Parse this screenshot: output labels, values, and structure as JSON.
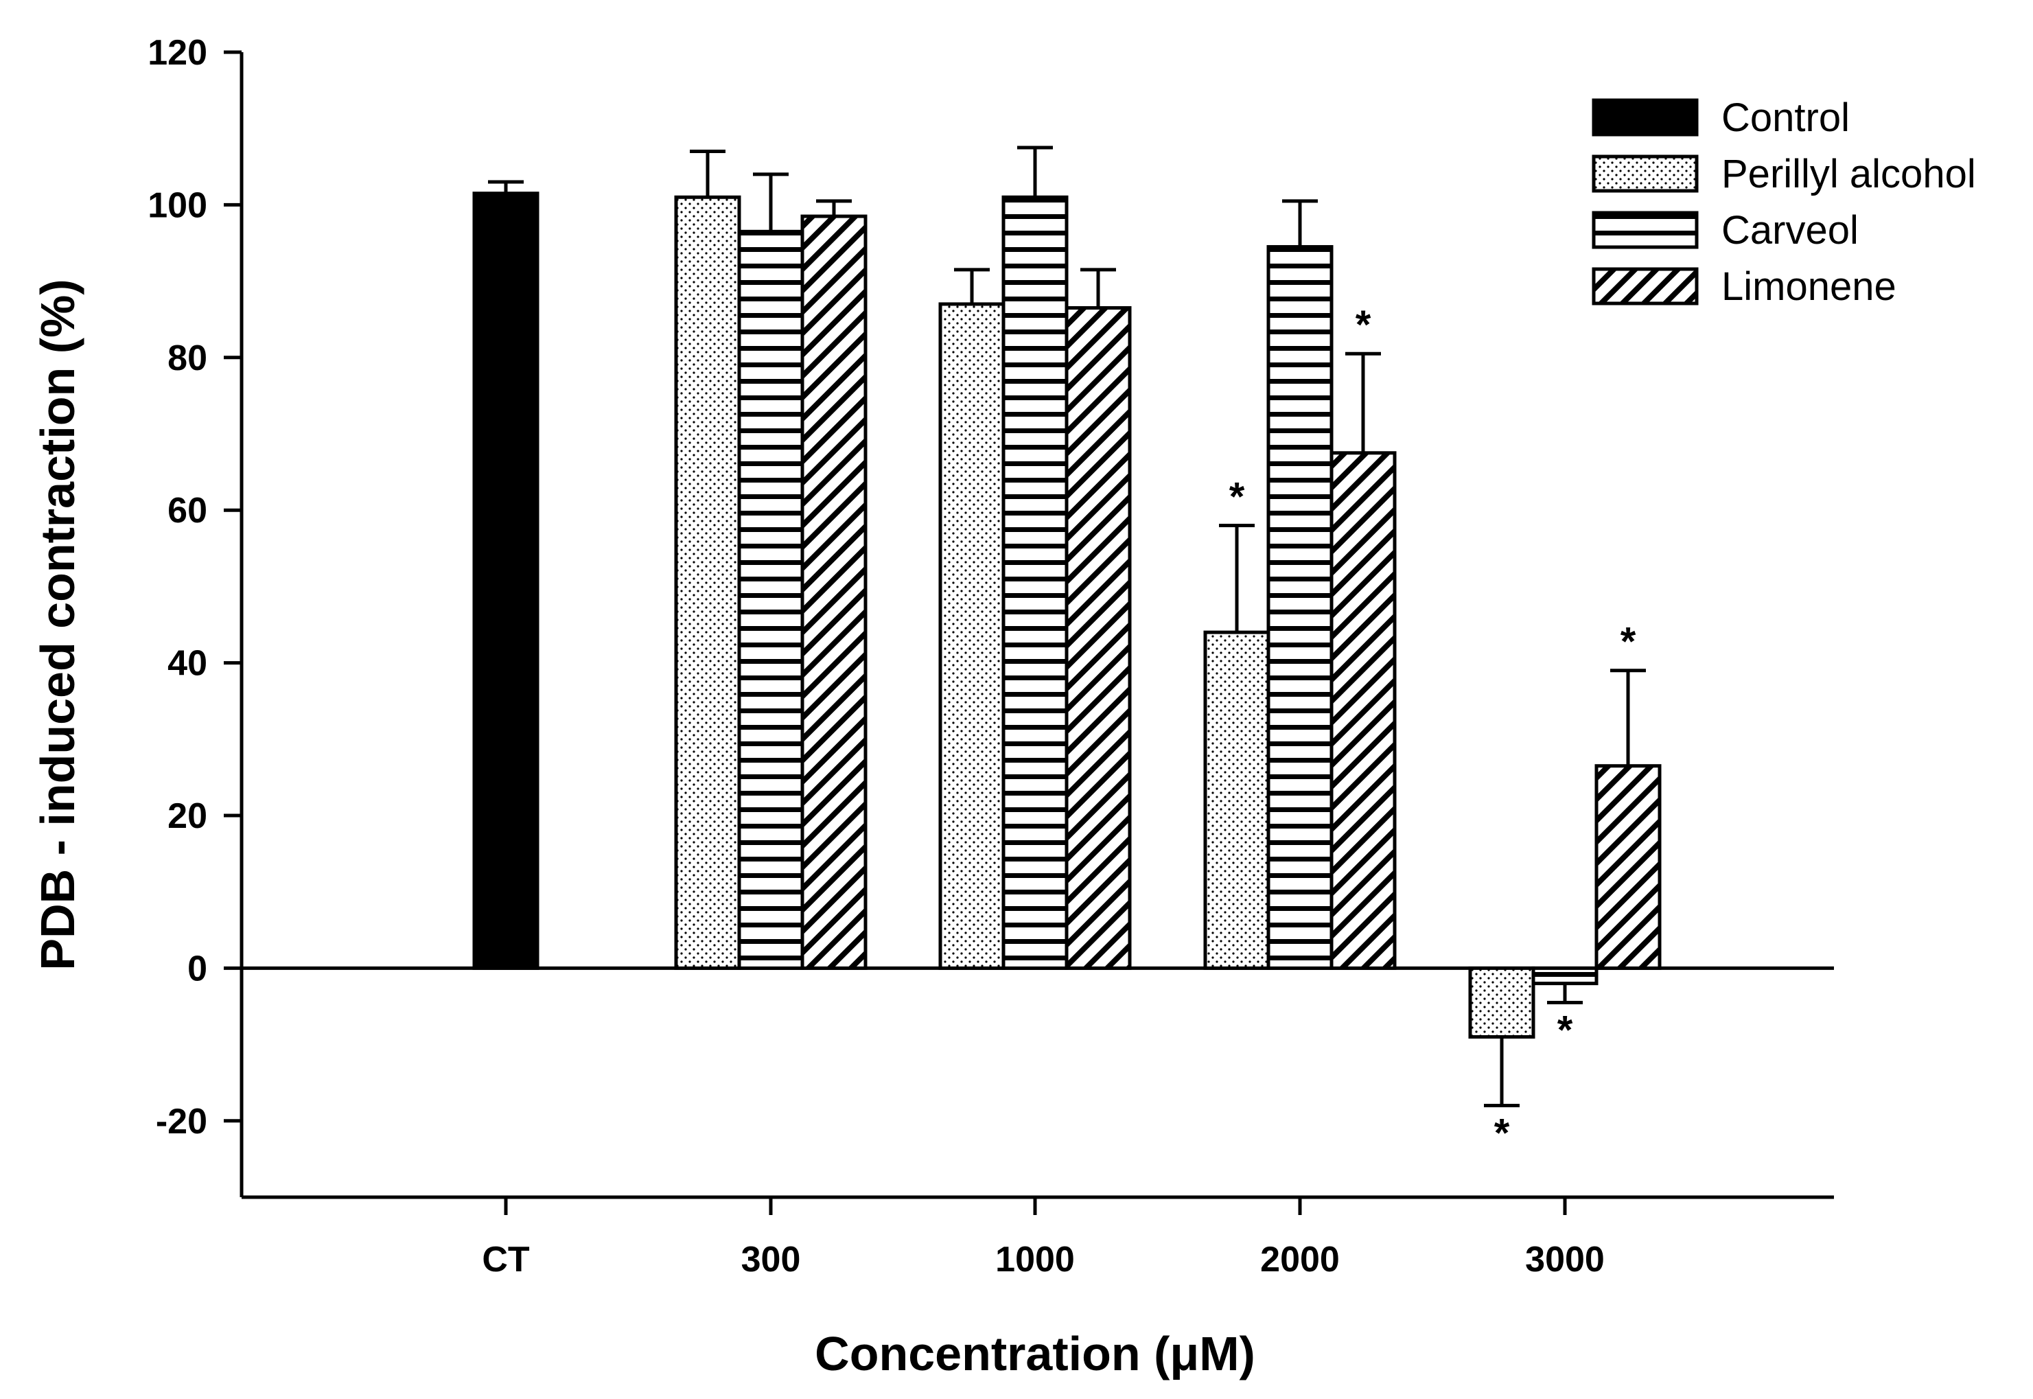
{
  "chart_data": {
    "type": "bar",
    "title": "",
    "xlabel": "Concentration (μM)",
    "ylabel": "PDB - induced contraction (%)",
    "ylim": [
      -30,
      120
    ],
    "yticks": [
      -20,
      0,
      20,
      40,
      60,
      80,
      100,
      120
    ],
    "ytick_labels": [
      "-20",
      "0",
      "20",
      "40",
      "60",
      "80",
      "100",
      "120"
    ],
    "categories": [
      "CT",
      "300",
      "1000",
      "2000",
      "3000"
    ],
    "legend_position": "top-right",
    "series": [
      {
        "name": "Control",
        "pattern": "solid",
        "values": [
          101.5,
          null,
          null,
          null,
          null
        ],
        "errors": [
          1.5,
          null,
          null,
          null,
          null
        ],
        "significant": [
          false,
          false,
          false,
          false,
          false
        ]
      },
      {
        "name": "Perillyl alcohol",
        "pattern": "dots",
        "values": [
          null,
          101,
          87,
          44,
          -9
        ],
        "errors": [
          null,
          6,
          4.5,
          14,
          9
        ],
        "significant": [
          false,
          false,
          false,
          true,
          true
        ]
      },
      {
        "name": "Carveol",
        "pattern": "horizontal-lines",
        "values": [
          null,
          96.5,
          101,
          94.5,
          -2
        ],
        "errors": [
          null,
          7.5,
          6.5,
          6,
          2.5
        ],
        "significant": [
          false,
          false,
          false,
          false,
          true
        ]
      },
      {
        "name": "Limonene",
        "pattern": "diagonal-hatch",
        "values": [
          null,
          98.5,
          86.5,
          67.5,
          26.5
        ],
        "errors": [
          null,
          2,
          5,
          13,
          12.5
        ],
        "significant": [
          false,
          false,
          false,
          true,
          true
        ]
      }
    ],
    "significance_marker": "*"
  },
  "colors": {
    "axis": "#000000",
    "bar_stroke": "#000000",
    "background": "#ffffff"
  }
}
